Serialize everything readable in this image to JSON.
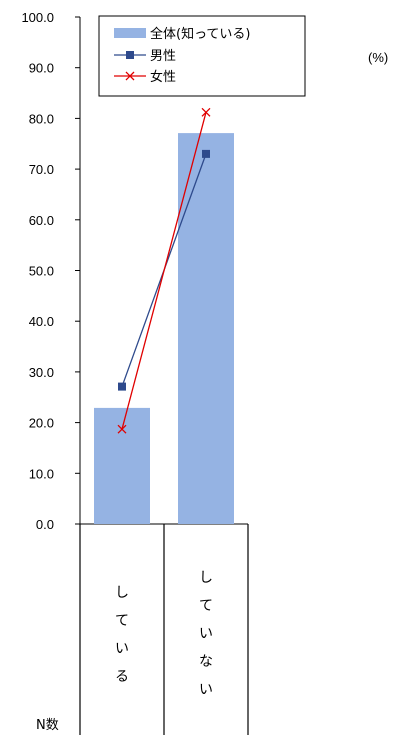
{
  "chart_data": {
    "type": "bar",
    "categories": [
      "している",
      "していない"
    ],
    "series": [
      {
        "name": "全体(知っている)",
        "kind": "bar",
        "values": [
          22.9,
          77.1
        ],
        "color": "#95b3e3"
      },
      {
        "name": "男性",
        "kind": "line",
        "marker": "square",
        "values": [
          27.1,
          73.0
        ],
        "color": "#2e4a8c"
      },
      {
        "name": "女性",
        "kind": "line",
        "marker": "x",
        "values": [
          18.7,
          81.2
        ],
        "color": "#e00000"
      }
    ],
    "ylim": [
      0,
      100
    ],
    "yticks": [
      "0.0",
      "10.0",
      "20.0",
      "30.0",
      "40.0",
      "50.0",
      "60.0",
      "70.0",
      "80.0",
      "90.0",
      "100.0"
    ],
    "unit_label": "(%)",
    "n_label": "N数",
    "legend_position": "top-center"
  }
}
